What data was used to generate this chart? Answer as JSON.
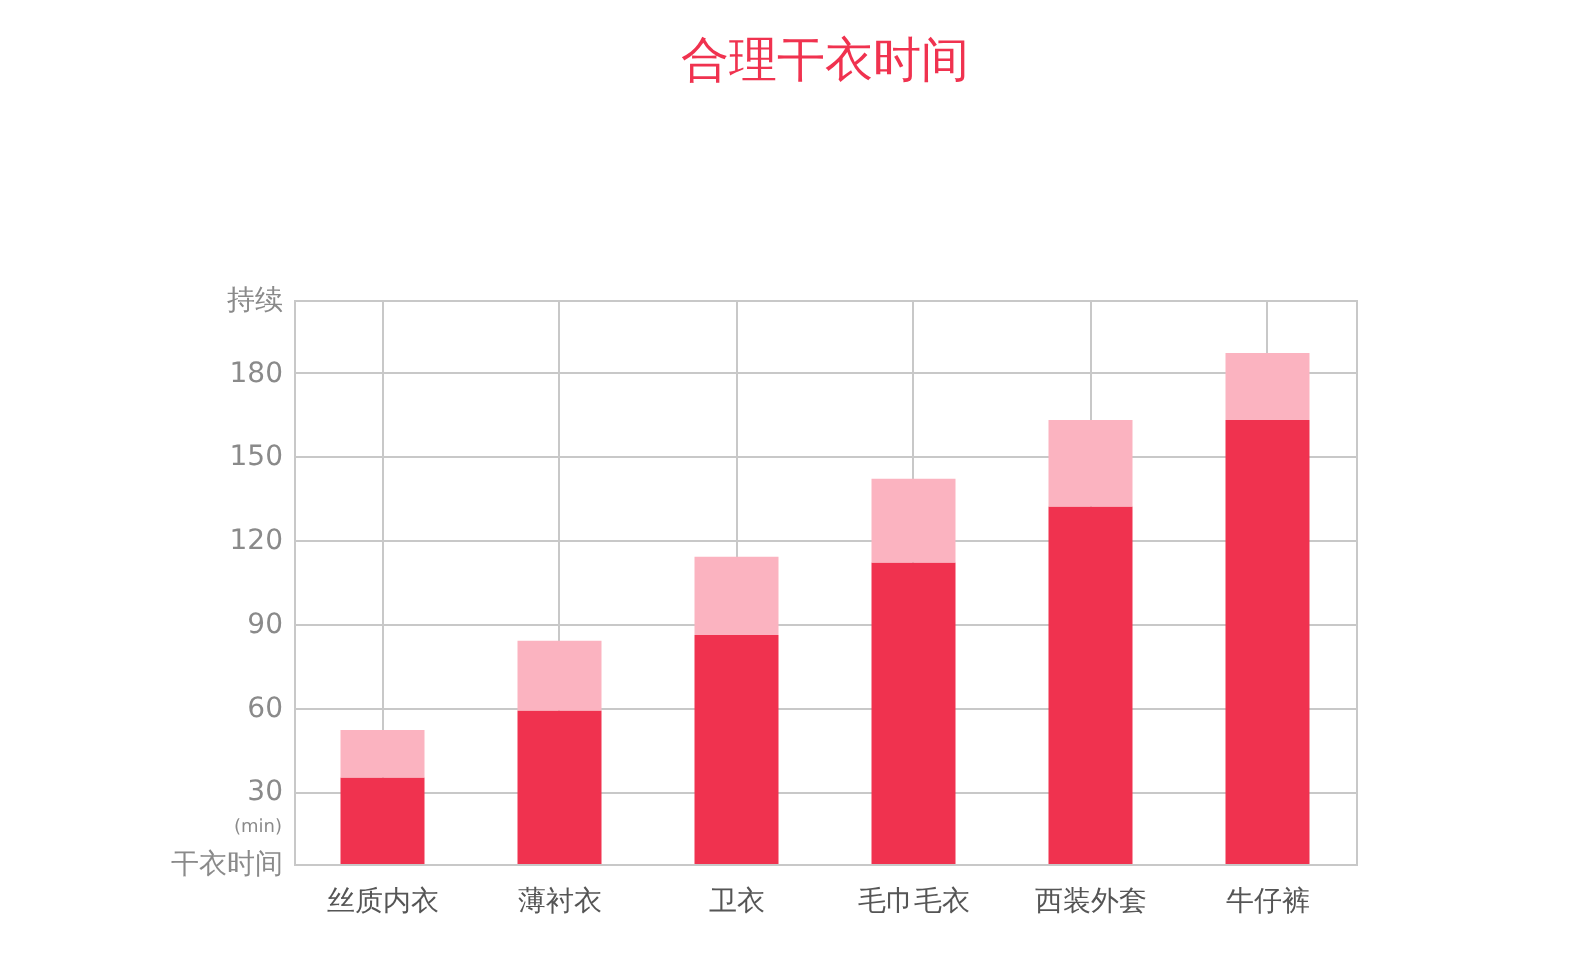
{
  "chart_data": {
    "type": "bar",
    "title": "合理干衣时间",
    "stacked": true,
    "categories": [
      "丝质内衣",
      "薄衬衣",
      "卫衣",
      "毛巾毛衣",
      "西装外套",
      "牛仔裤"
    ],
    "series": [
      {
        "color": "#f0324f",
        "values": [
          35,
          59,
          86,
          112,
          132,
          163
        ]
      },
      {
        "color": "#fbb3c0",
        "values": [
          17,
          25,
          28,
          30,
          31,
          24
        ]
      }
    ],
    "ylim": [
      4,
      206
    ],
    "yticks": [
      {
        "value": 4,
        "label": "干衣时间"
      },
      30,
      60,
      90,
      120,
      150,
      180,
      {
        "value": 206,
        "label": "持续"
      }
    ],
    "annotations": [
      "(min)"
    ],
    "grid": true,
    "legend": false
  }
}
